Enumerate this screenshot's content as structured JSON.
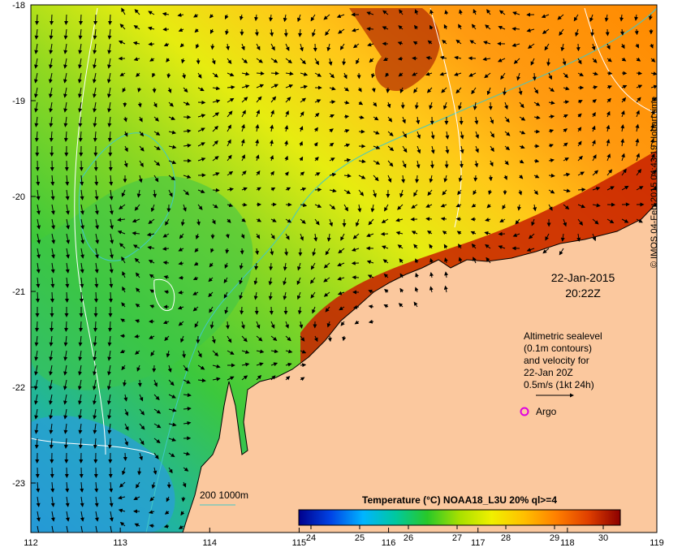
{
  "map": {
    "date": "22-Jan-2015",
    "time": "20:22Z",
    "x_ticks": [
      "112",
      "113",
      "114",
      "115",
      "116",
      "117",
      "118",
      "119"
    ],
    "y_ticks": [
      "-18",
      "-19",
      "-20",
      "-21",
      "-22",
      "-23"
    ],
    "legend_title": "Temperature (°C) NOAA18_L3U 20% ql>=4",
    "colorbar_ticks": [
      "24",
      "25",
      "26",
      "27",
      "28",
      "29",
      "30"
    ],
    "colorbar_stops": [
      "#00008c",
      "#0044e6",
      "#00b4ff",
      "#00c8a0",
      "#28c828",
      "#a8e000",
      "#f0f000",
      "#ffc000",
      "#ff8000",
      "#e04000",
      "#8c0000"
    ],
    "altimetry_note": [
      "Altimetric sealevel",
      "(0.1m contours)",
      "and velocity for",
      "22-Jan 20Z",
      "0.5m/s (1kt 24h)"
    ],
    "argo_label": "Argo",
    "bathymetry_label": "200  1000m",
    "credit": "© IMOS 04-Feb-2015 04:43:19 Hobart time",
    "colors": {
      "land": "#fbc89e",
      "argo": "#e000e0",
      "bathymetry": "#40c8c8"
    }
  }
}
